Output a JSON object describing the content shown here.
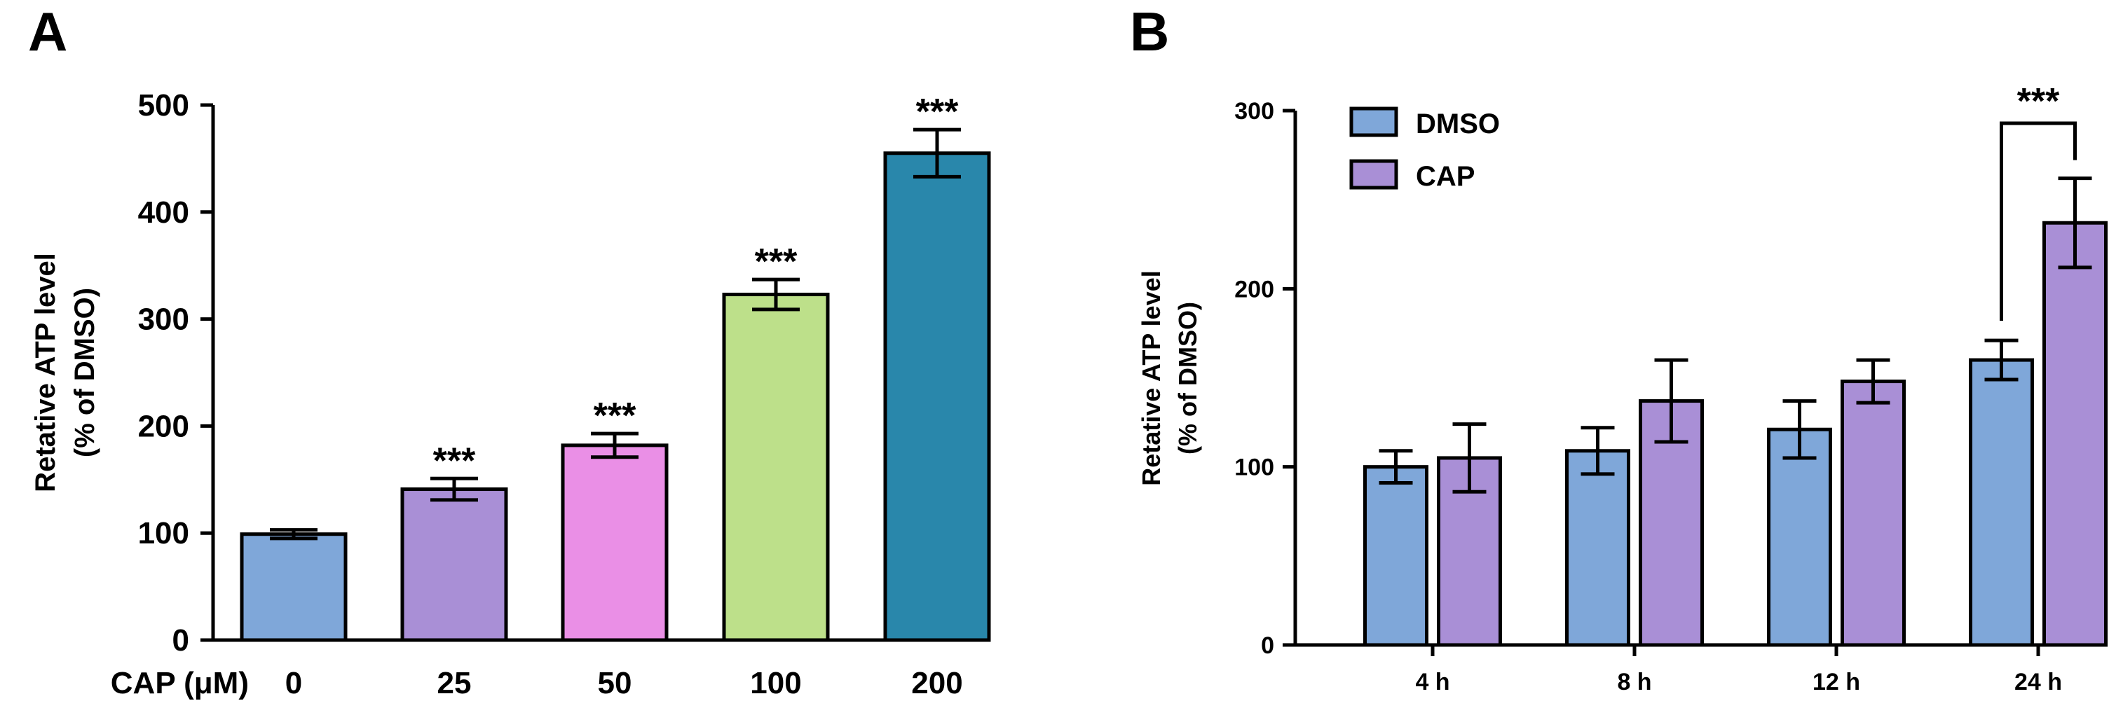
{
  "chart_data": [
    {
      "panel": "A",
      "type": "bar",
      "xlabel": "CAP (μM)",
      "ylabel_line1": "Retative ATP level",
      "ylabel_line2": "(% of DMSO)",
      "ylim": [
        0,
        500
      ],
      "yticks": [
        "0",
        "100",
        "200",
        "300",
        "400",
        "500"
      ],
      "categories": [
        "0",
        "25",
        "50",
        "100",
        "200"
      ],
      "values": [
        99,
        141,
        182,
        323,
        455
      ],
      "errors": [
        4,
        10,
        11,
        14,
        22
      ],
      "significance": [
        "",
        "***",
        "***",
        "***",
        "***"
      ],
      "colors": [
        "#7fa7d9",
        "#a98fd6",
        "#ea8fe6",
        "#bde08a",
        "#2987ab"
      ]
    },
    {
      "panel": "B",
      "type": "bar",
      "xlabel": "",
      "ylabel_line1": "Retative ATP level",
      "ylabel_line2": "(% of DMSO)",
      "ylim": [
        0,
        300
      ],
      "yticks": [
        "0",
        "100",
        "200",
        "300"
      ],
      "categories": [
        "4 h",
        "8 h",
        "12 h",
        "24 h"
      ],
      "series": [
        {
          "name": "DMSO",
          "values": [
            100,
            109,
            121,
            160
          ],
          "errors": [
            9,
            13,
            16,
            11
          ],
          "color": "#7fa7d9"
        },
        {
          "name": "CAP",
          "values": [
            105,
            137,
            148,
            237
          ],
          "errors": [
            19,
            23,
            12,
            25
          ],
          "color": "#a98fd6"
        }
      ],
      "significance": {
        "category": "24 h",
        "label": "***"
      }
    }
  ]
}
